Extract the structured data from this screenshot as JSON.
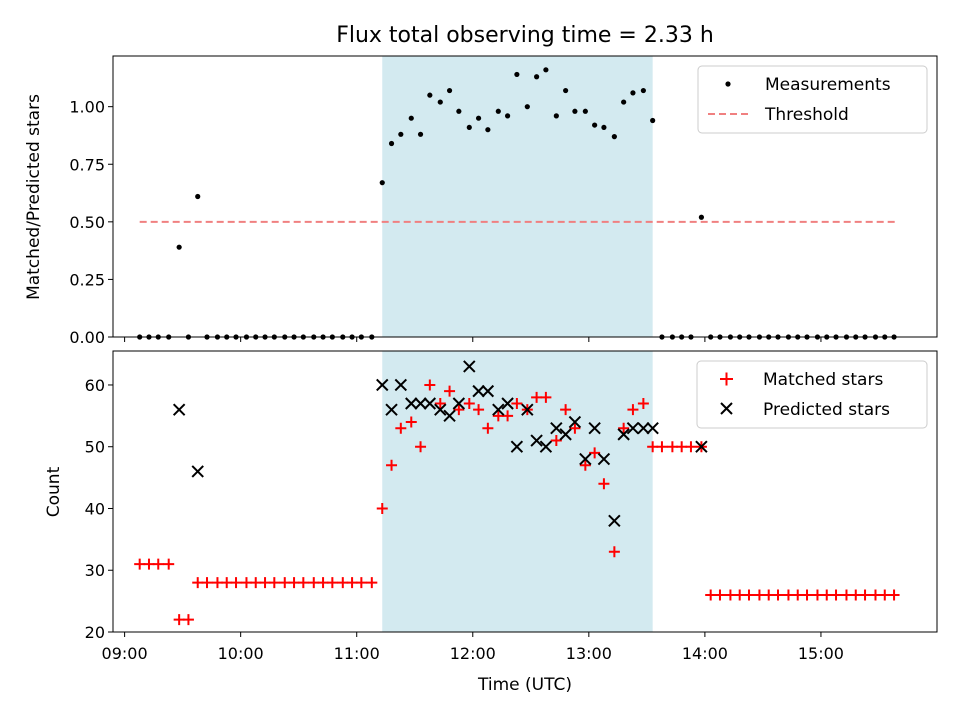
{
  "chart_data": [
    {
      "type": "scatter",
      "title": "Flux total observing time = 2.33 h",
      "xlabel": "",
      "ylabel": "Matched/Predicted stars",
      "xlim": [
        8.9,
        16.0
      ],
      "ylim": [
        0.0,
        1.22
      ],
      "x_ticks": [
        9,
        10,
        11,
        12,
        13,
        14,
        15
      ],
      "y_ticks": [
        0.0,
        0.25,
        0.5,
        0.75,
        1.0
      ],
      "y_tick_labels": [
        "0.00",
        "0.25",
        "0.50",
        "0.75",
        "1.00"
      ],
      "shaded_span": {
        "start": 11.22,
        "end": 13.55,
        "color": "#d3eaf0"
      },
      "legend": {
        "position": "top-right",
        "entries": [
          "Measurements",
          "Threshold"
        ]
      },
      "threshold": {
        "name": "Threshold",
        "value": 0.5,
        "x_start": 9.13,
        "x_end": 15.65,
        "color": "#f08080"
      },
      "measurements": {
        "name": "Measurements",
        "x": [
          9.13,
          9.21,
          9.29,
          9.38,
          9.47,
          9.55,
          9.63,
          9.71,
          9.8,
          9.88,
          9.96,
          10.05,
          10.13,
          10.21,
          10.29,
          10.38,
          10.46,
          10.54,
          10.63,
          10.71,
          10.79,
          10.88,
          10.96,
          11.04,
          11.13,
          11.22,
          11.3,
          11.38,
          11.47,
          11.55,
          11.63,
          11.72,
          11.8,
          11.88,
          11.97,
          12.05,
          12.13,
          12.22,
          12.3,
          12.38,
          12.47,
          12.55,
          12.63,
          12.72,
          12.8,
          12.88,
          12.97,
          13.05,
          13.13,
          13.22,
          13.3,
          13.38,
          13.47,
          13.55,
          13.63,
          13.72,
          13.8,
          13.88,
          13.97,
          14.05,
          14.13,
          14.22,
          14.3,
          14.38,
          14.47,
          14.55,
          14.63,
          14.72,
          14.8,
          14.88,
          14.97,
          15.05,
          15.13,
          15.22,
          15.3,
          15.38,
          15.47,
          15.55,
          15.63
        ],
        "y": [
          0,
          0,
          0,
          0,
          0.39,
          0,
          0.61,
          0,
          0,
          0,
          0,
          0,
          0,
          0,
          0,
          0,
          0,
          0,
          0,
          0,
          0,
          0,
          0,
          0,
          0,
          0.67,
          0.84,
          0.88,
          0.95,
          0.88,
          1.05,
          1.02,
          1.07,
          0.98,
          0.91,
          0.95,
          0.9,
          0.98,
          0.96,
          1.14,
          1.0,
          1.13,
          1.16,
          0.96,
          1.07,
          0.98,
          0.98,
          0.92,
          0.91,
          0.87,
          1.02,
          1.06,
          1.07,
          0.94,
          0,
          0,
          0,
          0,
          0.52,
          0,
          0,
          0,
          0,
          0,
          0,
          0,
          0,
          0,
          0,
          0,
          0,
          0,
          0,
          0,
          0,
          0,
          0,
          0,
          0
        ]
      }
    },
    {
      "type": "scatter",
      "title": "",
      "xlabel": "Time (UTC)",
      "ylabel": "Count",
      "xlim": [
        8.9,
        16.0
      ],
      "ylim": [
        20,
        65.5
      ],
      "x_ticks": [
        9,
        10,
        11,
        12,
        13,
        14,
        15
      ],
      "x_tick_labels": [
        "09:00",
        "10:00",
        "11:00",
        "12:00",
        "13:00",
        "14:00",
        "15:00"
      ],
      "y_ticks": [
        20,
        30,
        40,
        50,
        60
      ],
      "y_tick_labels": [
        "20",
        "30",
        "40",
        "50",
        "60"
      ],
      "shaded_span": {
        "start": 11.22,
        "end": 13.55,
        "color": "#d3eaf0"
      },
      "legend": {
        "position": "top-right",
        "entries": [
          "Matched stars",
          "Predicted stars"
        ]
      },
      "series": [
        {
          "name": "Matched stars",
          "marker": "plus",
          "color": "#ff0000",
          "x": [
            9.13,
            9.21,
            9.29,
            9.38,
            9.47,
            9.55,
            9.63,
            9.71,
            9.8,
            9.88,
            9.96,
            10.05,
            10.13,
            10.21,
            10.29,
            10.38,
            10.46,
            10.54,
            10.63,
            10.71,
            10.79,
            10.88,
            10.96,
            11.04,
            11.13,
            11.22,
            11.3,
            11.38,
            11.47,
            11.55,
            11.63,
            11.72,
            11.8,
            11.88,
            11.97,
            12.05,
            12.13,
            12.22,
            12.3,
            12.38,
            12.47,
            12.55,
            12.63,
            12.72,
            12.8,
            12.88,
            12.97,
            13.05,
            13.13,
            13.22,
            13.3,
            13.38,
            13.47,
            13.55,
            13.63,
            13.72,
            13.8,
            13.88,
            13.97,
            14.05,
            14.13,
            14.22,
            14.3,
            14.38,
            14.47,
            14.55,
            14.63,
            14.72,
            14.8,
            14.88,
            14.97,
            15.05,
            15.13,
            15.22,
            15.3,
            15.38,
            15.47,
            15.55,
            15.63
          ],
          "y": [
            31,
            31,
            31,
            31,
            22,
            22,
            28,
            28,
            28,
            28,
            28,
            28,
            28,
            28,
            28,
            28,
            28,
            28,
            28,
            28,
            28,
            28,
            28,
            28,
            28,
            40,
            47,
            53,
            54,
            50,
            60,
            57,
            59,
            56,
            57,
            56,
            53,
            55,
            55,
            57,
            56,
            58,
            58,
            51,
            56,
            53,
            47,
            49,
            44,
            33,
            53,
            56,
            57,
            50,
            50,
            50,
            50,
            50,
            50,
            26,
            26,
            26,
            26,
            26,
            26,
            26,
            26,
            26,
            26,
            26,
            26,
            26,
            26,
            26,
            26,
            26,
            26,
            26,
            26
          ]
        },
        {
          "name": "Predicted stars",
          "marker": "x",
          "color": "#000000",
          "x": [
            9.47,
            9.63,
            11.22,
            11.3,
            11.38,
            11.47,
            11.55,
            11.63,
            11.72,
            11.8,
            11.88,
            11.97,
            12.05,
            12.13,
            12.22,
            12.3,
            12.38,
            12.47,
            12.55,
            12.63,
            12.72,
            12.8,
            12.88,
            12.97,
            13.05,
            13.13,
            13.22,
            13.3,
            13.38,
            13.47,
            13.55,
            13.97
          ],
          "y": [
            56,
            46,
            60,
            56,
            60,
            57,
            57,
            57,
            56,
            55,
            57,
            63,
            59,
            59,
            56,
            57,
            50,
            56,
            51,
            50,
            53,
            52,
            54,
            48,
            53,
            48,
            38,
            52,
            53,
            53,
            53,
            50
          ]
        }
      ]
    }
  ]
}
